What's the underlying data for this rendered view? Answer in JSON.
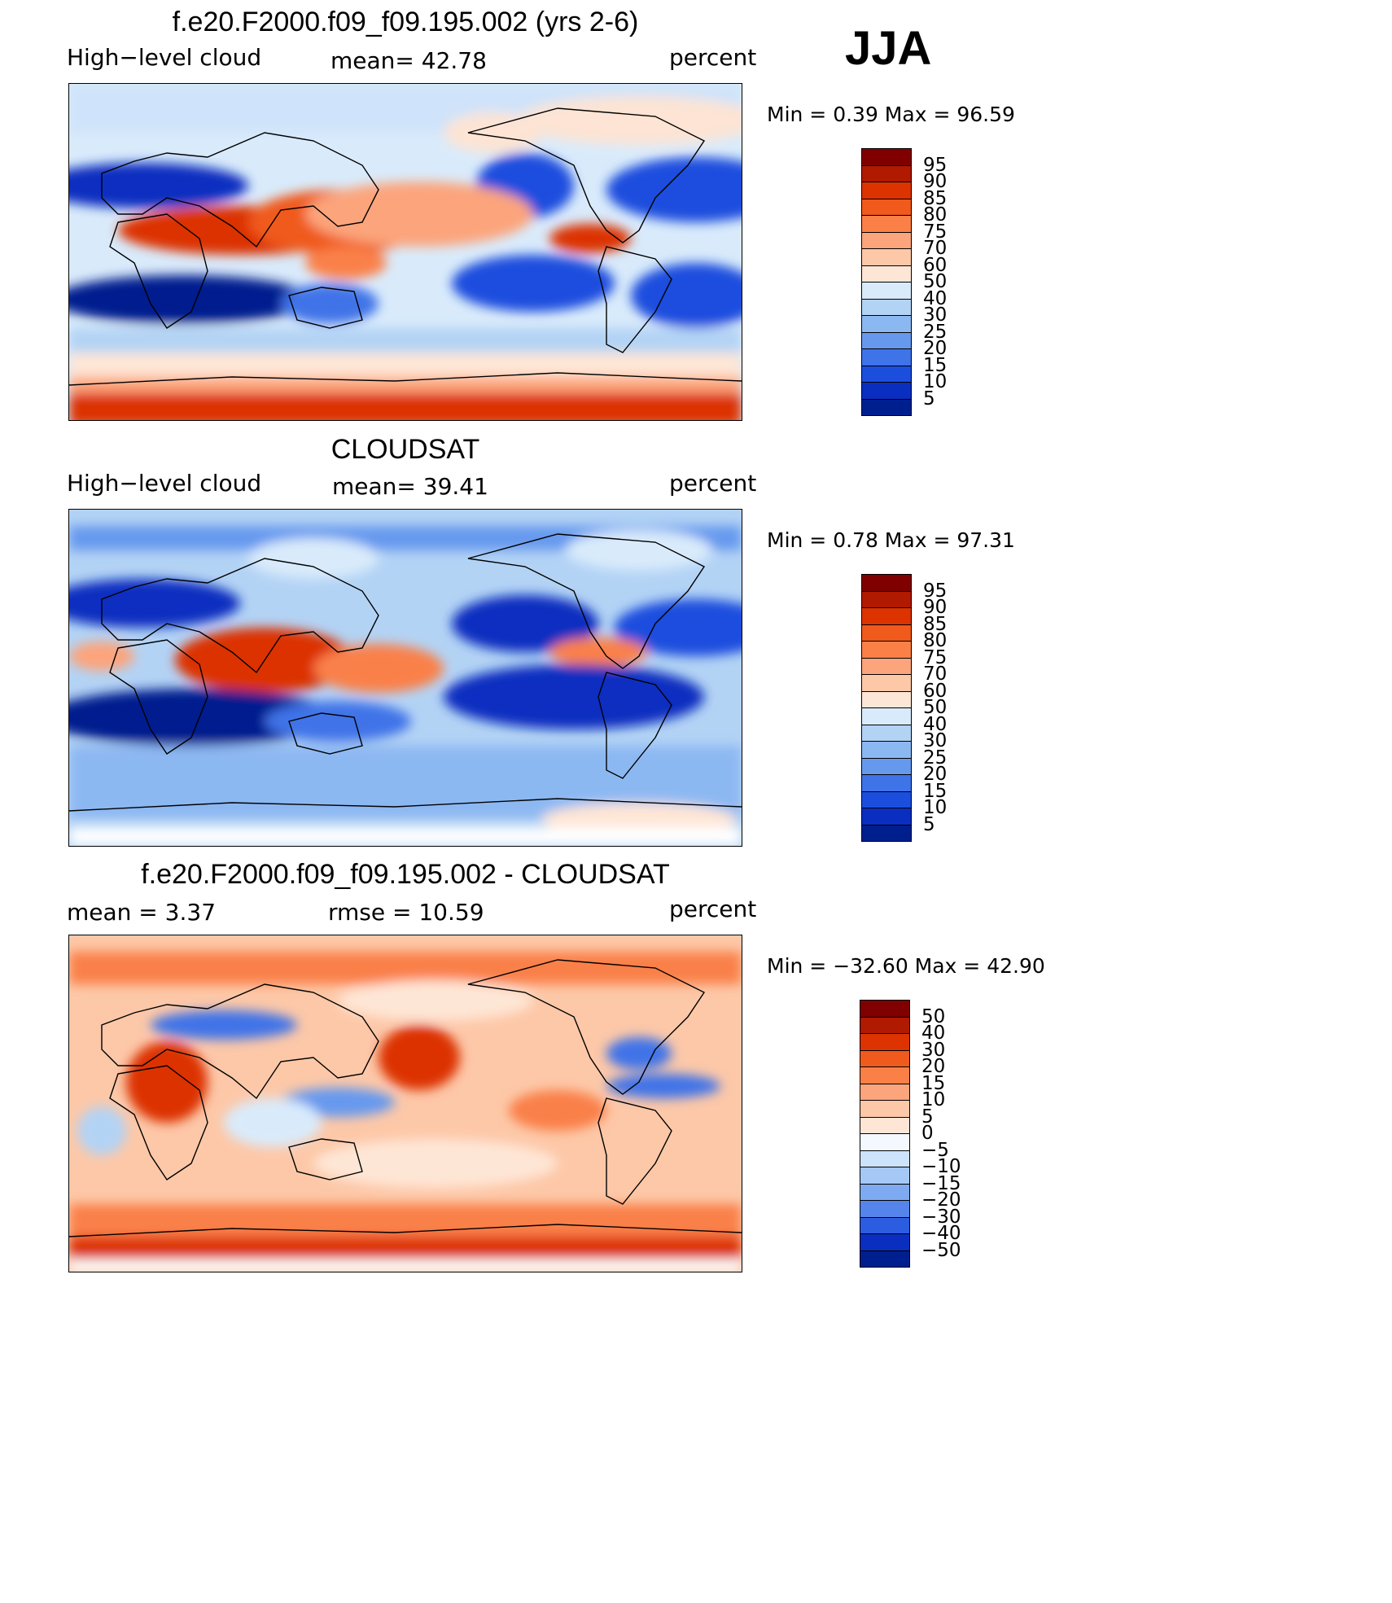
{
  "season": "JJA",
  "panels": [
    {
      "id": "model",
      "title": "f.e20.F2000.f09_f09.195.002 (yrs 2-6)",
      "left_label": "High−level cloud",
      "mid_label": "mean=   42.78",
      "right_label": "percent",
      "minmax": "Min  =     0.39  Max  =    96.59",
      "colorbar": {
        "labels": [
          "95",
          "90",
          "85",
          "80",
          "75",
          "70",
          "60",
          "50",
          "40",
          "30",
          "25",
          "20",
          "15",
          "10",
          "5"
        ],
        "colors": [
          "#800000",
          "#b01a00",
          "#dc3300",
          "#f05a1c",
          "#fa8048",
          "#fca47c",
          "#fdc8a8",
          "#fee6d6",
          "#d9ebfb",
          "#b3d3f5",
          "#8cb8f2",
          "#6699ee",
          "#3f73e8",
          "#1c4ede",
          "#0a2ec0",
          "#001f8e"
        ]
      }
    },
    {
      "id": "obs",
      "title": "CLOUDSAT",
      "left_label": "High−level cloud",
      "mid_label": "mean=   39.41",
      "right_label": "percent",
      "minmax": "Min  =     0.78  Max  =    97.31",
      "colorbar": {
        "labels": [
          "95",
          "90",
          "85",
          "80",
          "75",
          "70",
          "60",
          "50",
          "40",
          "30",
          "25",
          "20",
          "15",
          "10",
          "5"
        ],
        "colors": [
          "#800000",
          "#b01a00",
          "#dc3300",
          "#f05a1c",
          "#fa8048",
          "#fca47c",
          "#fdc8a8",
          "#fee6d6",
          "#d9ebfb",
          "#b3d3f5",
          "#8cb8f2",
          "#6699ee",
          "#3f73e8",
          "#1c4ede",
          "#0a2ec0",
          "#001f8e"
        ]
      }
    },
    {
      "id": "diff",
      "title": "f.e20.F2000.f09_f09.195.002 - CLOUDSAT",
      "left_label": "mean  =     3.37",
      "mid_label": "rmse  =    10.59",
      "right_label": "percent",
      "minmax": "Min  = −32.60  Max  =    42.90",
      "colorbar": {
        "labels": [
          "50",
          "40",
          "30",
          "20",
          "15",
          "10",
          "5",
          "0",
          "−5",
          "−10",
          "−15",
          "−20",
          "−30",
          "−40",
          "−50"
        ],
        "colors": [
          "#800000",
          "#b01a00",
          "#dc3300",
          "#f05a1c",
          "#fa8048",
          "#fca47c",
          "#fdc8a8",
          "#fee6d6",
          "#f4f9ff",
          "#cde2fb",
          "#a6c8f6",
          "#7eaaf1",
          "#5585ea",
          "#2c5ce0",
          "#0a2ec0",
          "#001f8e"
        ]
      }
    }
  ]
}
